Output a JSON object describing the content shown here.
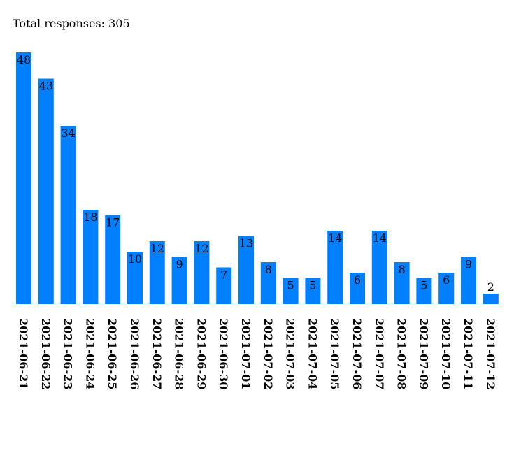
{
  "header": {
    "total_label": "Total responses: 305"
  },
  "colors": {
    "bar": "#0080ff"
  },
  "chart_data": {
    "type": "bar",
    "categories": [
      "2021-06-21",
      "2021-06-22",
      "2021-06-23",
      "2021-06-24",
      "2021-06-25",
      "2021-06-26",
      "2021-06-27",
      "2021-06-28",
      "2021-06-29",
      "2021-06-30",
      "2021-07-01",
      "2021-07-02",
      "2021-07-03",
      "2021-07-04",
      "2021-07-05",
      "2021-07-06",
      "2021-07-07",
      "2021-07-08",
      "2021-07-09",
      "2021-07-10",
      "2021-07-11",
      "2021-07-12"
    ],
    "values": [
      48,
      43,
      34,
      18,
      17,
      10,
      12,
      9,
      12,
      7,
      13,
      8,
      5,
      5,
      14,
      6,
      14,
      8,
      5,
      6,
      9,
      2
    ],
    "title": "",
    "xlabel": "",
    "ylabel": "",
    "grid": false,
    "legend": "none"
  }
}
